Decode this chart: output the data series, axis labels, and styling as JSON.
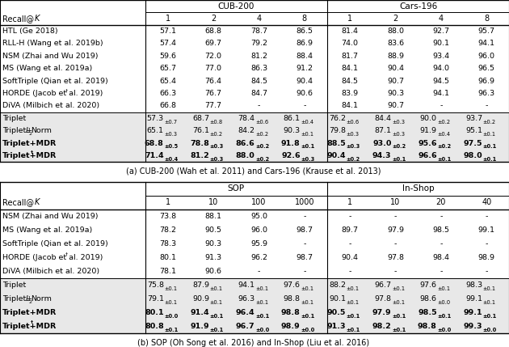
{
  "table_a": {
    "title": "CUB-200",
    "title2": "Cars-196",
    "col_header": [
      "Recall@K",
      "1",
      "2",
      "4",
      "8",
      "1",
      "2",
      "4",
      "8"
    ],
    "rows_plain": [
      [
        "HTL (Ge 2018)",
        "57.1",
        "68.8",
        "78.7",
        "86.5",
        "81.4",
        "88.0",
        "92.7",
        "95.7"
      ],
      [
        "RLL-H (Wang et al. 2019b)",
        "57.4",
        "69.7",
        "79.2",
        "86.9",
        "74.0",
        "83.6",
        "90.1",
        "94.1"
      ],
      [
        "NSM (Zhai and Wu 2019)",
        "59.6",
        "72.0",
        "81.2",
        "88.4",
        "81.7",
        "88.9",
        "93.4",
        "96.0"
      ],
      [
        "MS (Wang et al. 2019a)",
        "65.7",
        "77.0",
        "86.3",
        "91.2",
        "84.1",
        "90.4",
        "94.0",
        "96.5"
      ],
      [
        "SoftTriple (Qian et al. 2019)",
        "65.4",
        "76.4",
        "84.5",
        "90.4",
        "84.5",
        "90.7",
        "94.5",
        "96.9"
      ],
      [
        "HORDE† (Jacob et al. 2019)",
        "66.3",
        "76.7",
        "84.7",
        "90.6",
        "83.9",
        "90.3",
        "94.1",
        "96.3"
      ],
      [
        "DiVA (Milbich et al. 2020)",
        "66.8",
        "77.7",
        "-",
        "-",
        "84.1",
        "90.7",
        "-",
        "-"
      ]
    ],
    "rows_ours": [
      [
        "Triplet",
        "57.3",
        "0.7",
        "68.7",
        "0.8",
        "78.4",
        "0.6",
        "86.1",
        "0.4",
        "76.2",
        "0.6",
        "84.4",
        "0.3",
        "90.0",
        "0.2",
        "93.7",
        "0.2"
      ],
      [
        "Triplet+L2Norm",
        "65.1",
        "0.3",
        "76.1",
        "0.2",
        "84.2",
        "0.2",
        "90.3",
        "0.1",
        "79.8",
        "0.3",
        "87.1",
        "0.3",
        "91.9",
        "0.4",
        "95.1",
        "0.1"
      ],
      [
        "Triplet+MDR",
        "68.8",
        "0.5",
        "78.8",
        "0.3",
        "86.6",
        "0.2",
        "91.8",
        "0.1",
        "88.5",
        "0.3",
        "93.0",
        "0.2",
        "95.6",
        "0.2",
        "97.5",
        "0.1"
      ],
      [
        "Triplet+MDR†",
        "71.4",
        "0.4",
        "81.2",
        "0.3",
        "88.0",
        "0.2",
        "92.6",
        "0.3",
        "90.4",
        "0.2",
        "94.3",
        "0.1",
        "96.6",
        "0.1",
        "98.0",
        "0.1"
      ]
    ],
    "bold_ours": [
      false,
      false,
      true,
      true
    ],
    "caption": "(a) CUB-200 (Wah et al. 2011) and Cars-196 (Krause et al. 2013)"
  },
  "table_b": {
    "title": "SOP",
    "title2": "In-Shop",
    "col_header": [
      "Recall@K",
      "1",
      "10",
      "100",
      "1000",
      "1",
      "10",
      "20",
      "40"
    ],
    "rows_plain": [
      [
        "NSM (Zhai and Wu 2019)",
        "73.8",
        "88.1",
        "95.0",
        "-",
        "-",
        "-",
        "-",
        "-"
      ],
      [
        "MS (Wang et al. 2019a)",
        "78.2",
        "90.5",
        "96.0",
        "98.7",
        "89.7",
        "97.9",
        "98.5",
        "99.1"
      ],
      [
        "SoftTriple (Qian et al. 2019)",
        "78.3",
        "90.3",
        "95.9",
        "-",
        "-",
        "-",
        "-",
        "-"
      ],
      [
        "HORDE† (Jacob et al. 2019)",
        "80.1",
        "91.3",
        "96.2",
        "98.7",
        "90.4",
        "97.8",
        "98.4",
        "98.9"
      ],
      [
        "DiVA (Milbich et al. 2020)",
        "78.1",
        "90.6",
        "-",
        "-",
        "-",
        "-",
        "-",
        "-"
      ]
    ],
    "rows_ours": [
      [
        "Triplet",
        "75.8",
        "0.1",
        "87.9",
        "0.1",
        "94.1",
        "0.1",
        "97.6",
        "0.1",
        "88.2",
        "0.1",
        "96.7",
        "0.1",
        "97.6",
        "0.1",
        "98.3",
        "0.1"
      ],
      [
        "Triplet+L2Norm",
        "79.1",
        "0.1",
        "90.9",
        "0.1",
        "96.3",
        "0.1",
        "98.8",
        "0.1",
        "90.1",
        "0.1",
        "97.8",
        "0.1",
        "98.6",
        "0.0",
        "99.1",
        "0.1"
      ],
      [
        "Triplet+MDR",
        "80.1",
        "0.0",
        "91.4",
        "0.1",
        "96.4",
        "0.1",
        "98.8",
        "0.1",
        "90.5",
        "0.1",
        "97.9",
        "0.1",
        "98.5",
        "0.1",
        "99.1",
        "0.1"
      ],
      [
        "Triplet+MDR†",
        "80.8",
        "0.1",
        "91.9",
        "0.1",
        "96.7",
        "0.0",
        "98.9",
        "0.0",
        "91.3",
        "0.1",
        "98.2",
        "0.1",
        "98.8",
        "0.0",
        "99.3",
        "0.0"
      ]
    ],
    "bold_ours": [
      false,
      false,
      true,
      true
    ],
    "caption": "(b) SOP (Oh Song et al. 2016) and In-Shop (Liu et al. 2016)"
  }
}
